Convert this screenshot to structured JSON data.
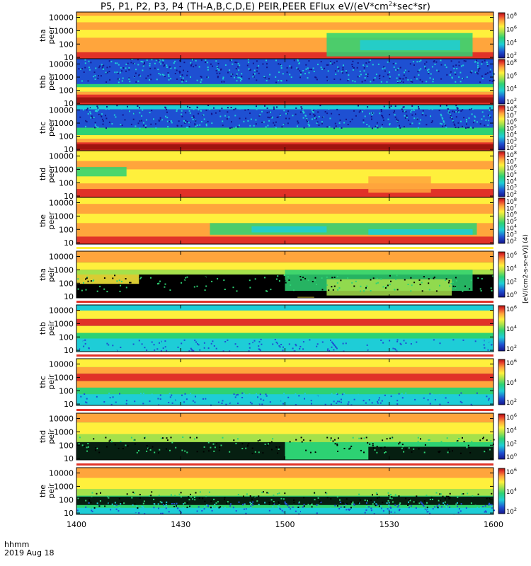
{
  "title_parts": {
    "prefix": "P5, P1, P2, P3, P4 (TH-A,B,C,D,E) PEIR,PEER EFlux eV/(eV*cm",
    "sup": "2",
    "suffix": "*sec*sr)"
  },
  "time_label": "hhmm",
  "date_label": "2019 Aug 18",
  "colorbar_unit": "[eV/(cm2-s-sr-eV)] (4)",
  "colors": {
    "black": "#000000",
    "navy": "#14148c",
    "blue": "#1e50d2",
    "cyan": "#1ecdd7",
    "green": "#2dd273",
    "lightgreen": "#a5e14b",
    "yellow": "#fff03c",
    "orange": "#ffa53c",
    "red": "#e13228",
    "darkred": "#a0140f"
  },
  "chart_data": {
    "type": "heatmap",
    "x_ticks": [
      "1400",
      "1430",
      "1500",
      "1530",
      "1600"
    ],
    "x_range": [
      "14:00",
      "16:00"
    ],
    "ylabel_scale": "log",
    "y_ticks": [
      "10",
      "100",
      "1000",
      "10000"
    ],
    "panels": [
      {
        "id": "tha-peer",
        "label": [
          "tha",
          "peer"
        ],
        "cb_ticks": [
          "10^2",
          "10^4",
          "10^6",
          "10^8"
        ],
        "profile": "tha-peer"
      },
      {
        "id": "thb-peer",
        "label": [
          "thb",
          "peer"
        ],
        "cb_ticks": [
          "10^2",
          "10^4",
          "10^6",
          "10^8"
        ],
        "profile": "thb-peer"
      },
      {
        "id": "thc-peer",
        "label": [
          "thc",
          "peer"
        ],
        "cb_ticks": [
          "10^2",
          "10^3",
          "10^4",
          "10^5",
          "10^6",
          "10^7",
          "10^8"
        ],
        "profile": "thc-peer"
      },
      {
        "id": "thd-peer",
        "label": [
          "thd",
          "peer"
        ],
        "cb_ticks": [
          "10^2",
          "10^3",
          "10^4",
          "10^5",
          "10^6",
          "10^7",
          "10^8"
        ],
        "profile": "thd-peer"
      },
      {
        "id": "the-peer",
        "label": [
          "the",
          "peer"
        ],
        "cb_ticks": [
          "10^2",
          "10^3",
          "10^4",
          "10^5",
          "10^6",
          "10^7",
          "10^8"
        ],
        "profile": "the-peer"
      },
      {
        "id": "tha-peir",
        "label": [
          "tha",
          "peir"
        ],
        "cb_ticks": [
          "10^0",
          "10^2",
          "10^4",
          "10^6"
        ],
        "profile": "tha-peir"
      },
      {
        "id": "thb-peir",
        "label": [
          "thb",
          "peir"
        ],
        "cb_ticks": [
          "10^2",
          "10^4",
          "10^6"
        ],
        "profile": "thb-peir"
      },
      {
        "id": "thc-peir",
        "label": [
          "thc",
          "peir"
        ],
        "cb_ticks": [
          "10^2",
          "10^4",
          "10^6"
        ],
        "profile": "thc-peir"
      },
      {
        "id": "thd-peir",
        "label": [
          "thd",
          "peir"
        ],
        "cb_ticks": [
          "10^0",
          "10^2",
          "10^4",
          "10^6"
        ],
        "profile": "thd-peir"
      },
      {
        "id": "the-peir",
        "label": [
          "the",
          "peir"
        ],
        "cb_ticks": [
          "10^2",
          "10^4",
          "10^6"
        ],
        "profile": "the-peir"
      }
    ]
  }
}
